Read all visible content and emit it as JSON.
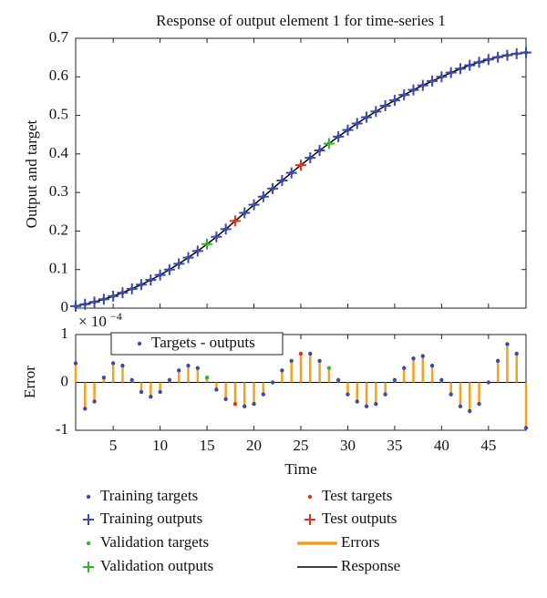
{
  "chart_data": [
    {
      "type": "response",
      "title": "Response of output element 1 for time-series 1",
      "ylabel": "Output and target",
      "xlim": [
        1,
        49
      ],
      "ylim": [
        0,
        0.7
      ],
      "yticks": [
        0,
        0.1,
        0.2,
        0.3,
        0.4,
        0.5,
        0.6,
        0.7
      ],
      "series": [
        {
          "name": "Training targets",
          "marker": "dot",
          "color": "#3a4aa8",
          "x": [
            1,
            2,
            3,
            4,
            5,
            6,
            7,
            8,
            9,
            10,
            11,
            12,
            13,
            14,
            16,
            17,
            19,
            20,
            21,
            22,
            23,
            24,
            26,
            27,
            29,
            30,
            31,
            32,
            33,
            34,
            35,
            36,
            37,
            38,
            39,
            40,
            41,
            42,
            43,
            44,
            45,
            46,
            47,
            48,
            49
          ],
          "values": [
            0.005,
            0.01,
            0.016,
            0.023,
            0.031,
            0.04,
            0.05,
            0.061,
            0.073,
            0.086,
            0.1,
            0.115,
            0.131,
            0.148,
            0.185,
            0.205,
            0.247,
            0.268,
            0.289,
            0.31,
            0.331,
            0.351,
            0.39,
            0.409,
            0.445,
            0.462,
            0.479,
            0.495,
            0.51,
            0.525,
            0.539,
            0.553,
            0.566,
            0.578,
            0.589,
            0.6,
            0.611,
            0.621,
            0.63,
            0.638,
            0.645,
            0.651,
            0.656,
            0.66,
            0.663
          ]
        },
        {
          "name": "Training outputs",
          "marker": "plus",
          "color": "#3a4aa8",
          "x": [
            1,
            2,
            3,
            4,
            5,
            6,
            7,
            8,
            9,
            10,
            11,
            12,
            13,
            14,
            16,
            17,
            19,
            20,
            21,
            22,
            23,
            24,
            26,
            27,
            29,
            30,
            31,
            32,
            33,
            34,
            35,
            36,
            37,
            38,
            39,
            40,
            41,
            42,
            43,
            44,
            45,
            46,
            47,
            48,
            49
          ],
          "values": [
            0.005,
            0.01,
            0.016,
            0.023,
            0.031,
            0.04,
            0.05,
            0.061,
            0.073,
            0.086,
            0.1,
            0.115,
            0.131,
            0.148,
            0.185,
            0.205,
            0.247,
            0.268,
            0.289,
            0.31,
            0.331,
            0.351,
            0.39,
            0.409,
            0.445,
            0.462,
            0.479,
            0.495,
            0.51,
            0.525,
            0.539,
            0.553,
            0.566,
            0.578,
            0.589,
            0.6,
            0.611,
            0.621,
            0.63,
            0.638,
            0.645,
            0.651,
            0.656,
            0.66,
            0.663
          ]
        },
        {
          "name": "Validation targets",
          "marker": "dot",
          "color": "#2fb52f",
          "x": [
            15,
            28
          ],
          "values": [
            0.166,
            0.427
          ]
        },
        {
          "name": "Validation outputs",
          "marker": "plus",
          "color": "#2fb52f",
          "x": [
            15,
            28
          ],
          "values": [
            0.166,
            0.427
          ]
        },
        {
          "name": "Test targets",
          "marker": "dot",
          "color": "#e0301e",
          "x": [
            18,
            25
          ],
          "values": [
            0.226,
            0.371
          ]
        },
        {
          "name": "Test outputs",
          "marker": "plus",
          "color": "#e0301e",
          "x": [
            18,
            25
          ],
          "values": [
            0.226,
            0.371
          ]
        },
        {
          "name": "Response",
          "marker": "line",
          "color": "#000000",
          "x": [
            1,
            2,
            3,
            4,
            5,
            6,
            7,
            8,
            9,
            10,
            11,
            12,
            13,
            14,
            15,
            16,
            17,
            18,
            19,
            20,
            21,
            22,
            23,
            24,
            25,
            26,
            27,
            28,
            29,
            30,
            31,
            32,
            33,
            34,
            35,
            36,
            37,
            38,
            39,
            40,
            41,
            42,
            43,
            44,
            45,
            46,
            47,
            48,
            49
          ],
          "values": [
            0.005,
            0.01,
            0.016,
            0.023,
            0.031,
            0.04,
            0.05,
            0.061,
            0.073,
            0.086,
            0.1,
            0.115,
            0.131,
            0.148,
            0.166,
            0.185,
            0.205,
            0.226,
            0.247,
            0.268,
            0.289,
            0.31,
            0.331,
            0.351,
            0.371,
            0.39,
            0.409,
            0.427,
            0.445,
            0.462,
            0.479,
            0.495,
            0.51,
            0.525,
            0.539,
            0.553,
            0.566,
            0.578,
            0.589,
            0.6,
            0.611,
            0.621,
            0.63,
            0.638,
            0.645,
            0.651,
            0.656,
            0.66,
            0.663
          ]
        }
      ]
    },
    {
      "type": "stem",
      "ylabel": "Error",
      "xlabel": "Time",
      "scale_base": "× 10",
      "scale_exponent": "−4",
      "xlim": [
        1,
        49
      ],
      "xticks": [
        5,
        10,
        15,
        20,
        25,
        30,
        35,
        40,
        45
      ],
      "ylim": [
        -1,
        1
      ],
      "yticks": [
        -1,
        0,
        1
      ],
      "legend_label": "Targets - outputs",
      "series": [
        {
          "name": "Errors",
          "color": "#f5a020",
          "x": [
            1,
            2,
            3,
            4,
            5,
            6,
            7,
            8,
            9,
            10,
            11,
            12,
            13,
            14,
            15,
            16,
            17,
            18,
            19,
            20,
            21,
            22,
            23,
            24,
            25,
            26,
            27,
            28,
            29,
            30,
            31,
            32,
            33,
            34,
            35,
            36,
            37,
            38,
            39,
            40,
            41,
            42,
            43,
            44,
            45,
            46,
            47,
            48,
            49
          ],
          "values": [
            0.4,
            -0.55,
            -0.4,
            0.1,
            0.4,
            0.35,
            0.05,
            -0.2,
            -0.3,
            -0.2,
            0.05,
            0.25,
            0.35,
            0.3,
            0.1,
            -0.15,
            -0.35,
            -0.45,
            -0.5,
            -0.45,
            -0.25,
            0,
            0.25,
            0.45,
            0.6,
            0.6,
            0.45,
            0.3,
            0.05,
            -0.25,
            -0.4,
            -0.5,
            -0.45,
            -0.25,
            0.05,
            0.3,
            0.5,
            0.55,
            0.35,
            0.05,
            -0.25,
            -0.5,
            -0.6,
            -0.45,
            0,
            0.45,
            0.8,
            0.6,
            -0.95
          ]
        }
      ]
    }
  ]
}
